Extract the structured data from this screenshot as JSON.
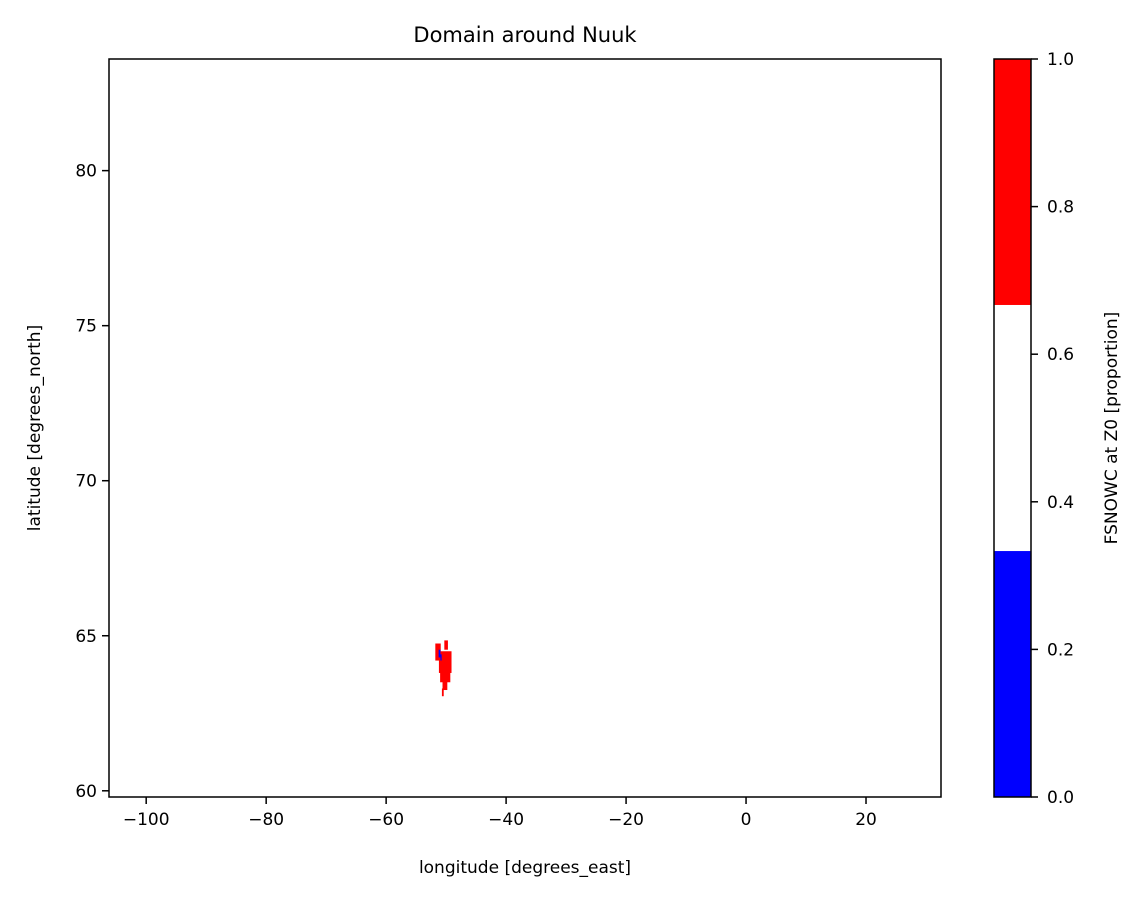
{
  "chart_data": {
    "type": "heatmap",
    "title": "Domain around Nuuk",
    "xlabel": "longitude [degrees_east]",
    "ylabel": "latitude [degrees_north]",
    "xlim": [
      -106.2,
      32.5
    ],
    "ylim": [
      59.8,
      83.6
    ],
    "xticks": [
      -100,
      -80,
      -60,
      -40,
      -20,
      0,
      20
    ],
    "xtick_labels": [
      "−100",
      "−80",
      "−60",
      "−40",
      "−20",
      "0",
      "20"
    ],
    "yticks": [
      60,
      65,
      70,
      75,
      80
    ],
    "ytick_labels": [
      "60",
      "65",
      "70",
      "75",
      "80"
    ],
    "grid": false,
    "colorbar": {
      "label": "FSNOWC at Z0 [proportion]",
      "range": [
        0.0,
        1.0
      ],
      "ticks": [
        0.0,
        0.2,
        0.4,
        0.6,
        0.8,
        1.0
      ],
      "tick_labels": [
        "0.0",
        "0.2",
        "0.4",
        "0.6",
        "0.8",
        "1.0"
      ],
      "bins": [
        {
          "from": 0.0,
          "to": 0.3333,
          "color": "#0000ff"
        },
        {
          "from": 0.3333,
          "to": 0.6667,
          "color": "#ffffff"
        },
        {
          "from": 0.6667,
          "to": 1.0,
          "color": "#ff0000"
        }
      ]
    },
    "cells": [
      {
        "lon": [
          -51.8,
          -50.9
        ],
        "lat": [
          64.2,
          64.75
        ],
        "value": 1.0
      },
      {
        "lon": [
          -50.3,
          -49.7
        ],
        "lat": [
          64.55,
          64.85
        ],
        "value": 1.0
      },
      {
        "lon": [
          -51.2,
          -49.1
        ],
        "lat": [
          63.8,
          64.5
        ],
        "value": 1.0
      },
      {
        "lon": [
          -51.0,
          -49.3
        ],
        "lat": [
          63.5,
          63.85
        ],
        "value": 1.0
      },
      {
        "lon": [
          -50.6,
          -49.8
        ],
        "lat": [
          63.25,
          63.55
        ],
        "value": 1.0
      },
      {
        "lon": [
          -50.7,
          -50.4
        ],
        "lat": [
          63.05,
          63.3
        ],
        "value": 1.0
      },
      {
        "lon": [
          -51.25,
          -50.95
        ],
        "lat": [
          64.3,
          64.55
        ],
        "value": 0.0
      },
      {
        "lon": [
          -50.95,
          -50.75
        ],
        "lat": [
          64.2,
          64.4
        ],
        "value": 0.0
      }
    ]
  }
}
